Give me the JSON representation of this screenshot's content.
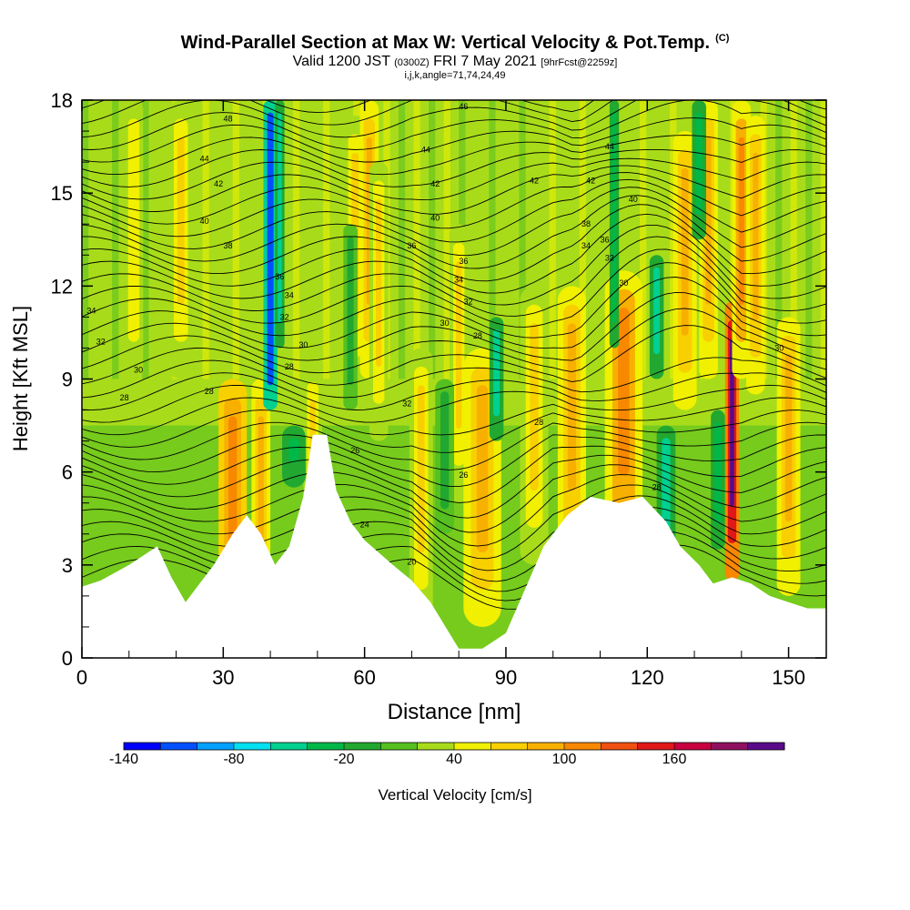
{
  "header": {
    "title_main": "Wind-Parallel Section at Max W: Vertical Velocity & Pot.Temp.",
    "title_mark": "(C)",
    "valid_prefix": "Valid 1200 JST",
    "valid_utc": "(0300Z)",
    "valid_date": "FRI 7 May 2021",
    "forecast": "[9hrFcst@2259z]",
    "params": "i,j,k,angle=71,74,24,49"
  },
  "chart_data": {
    "type": "heatmap",
    "xlabel": "Distance [nm]",
    "ylabel": "Height [Kft MSL]",
    "xlim": [
      0,
      158
    ],
    "ylim": [
      0,
      18
    ],
    "xticks": [
      0,
      30,
      60,
      90,
      120,
      150
    ],
    "yticks": [
      0,
      3,
      6,
      9,
      12,
      15,
      18
    ],
    "terrain": [
      {
        "x": 0,
        "y": 2.3
      },
      {
        "x": 4,
        "y": 2.5
      },
      {
        "x": 10,
        "y": 3.0
      },
      {
        "x": 16,
        "y": 3.6
      },
      {
        "x": 19,
        "y": 2.6
      },
      {
        "x": 22,
        "y": 1.8
      },
      {
        "x": 25,
        "y": 2.4
      },
      {
        "x": 28,
        "y": 3.0
      },
      {
        "x": 32,
        "y": 4.0
      },
      {
        "x": 35,
        "y": 4.6
      },
      {
        "x": 38,
        "y": 4.0
      },
      {
        "x": 41,
        "y": 3.0
      },
      {
        "x": 44,
        "y": 3.6
      },
      {
        "x": 47,
        "y": 5.2
      },
      {
        "x": 49,
        "y": 7.2
      },
      {
        "x": 52,
        "y": 7.2
      },
      {
        "x": 54,
        "y": 5.4
      },
      {
        "x": 57,
        "y": 4.4
      },
      {
        "x": 60,
        "y": 3.8
      },
      {
        "x": 63,
        "y": 3.4
      },
      {
        "x": 66,
        "y": 3.0
      },
      {
        "x": 70,
        "y": 2.5
      },
      {
        "x": 74,
        "y": 1.8
      },
      {
        "x": 78,
        "y": 0.8
      },
      {
        "x": 80,
        "y": 0.3
      },
      {
        "x": 85,
        "y": 0.3
      },
      {
        "x": 90,
        "y": 0.8
      },
      {
        "x": 94,
        "y": 2.2
      },
      {
        "x": 98,
        "y": 3.6
      },
      {
        "x": 103,
        "y": 4.6
      },
      {
        "x": 108,
        "y": 5.2
      },
      {
        "x": 114,
        "y": 5.0
      },
      {
        "x": 119,
        "y": 5.2
      },
      {
        "x": 124,
        "y": 4.4
      },
      {
        "x": 127,
        "y": 3.6
      },
      {
        "x": 131,
        "y": 3.0
      },
      {
        "x": 134,
        "y": 2.4
      },
      {
        "x": 138,
        "y": 2.6
      },
      {
        "x": 142,
        "y": 2.4
      },
      {
        "x": 146,
        "y": 2.0
      },
      {
        "x": 150,
        "y": 1.8
      },
      {
        "x": 154,
        "y": 1.6
      },
      {
        "x": 158,
        "y": 1.6
      }
    ],
    "updraft_cores": [
      {
        "x": 32,
        "ytop": 9.0,
        "w": 3.0,
        "value": 90
      },
      {
        "x": 38,
        "ytop": 9.0,
        "w": 2.0,
        "value": 70
      },
      {
        "x": 49,
        "ytop": 9.5,
        "w": 2.0,
        "value": 40
      },
      {
        "x": 58,
        "ytop": 17.5,
        "w": 2.5,
        "value": 40
      },
      {
        "x": 61,
        "ytop": 18.0,
        "w": 2.0,
        "value": 70
      },
      {
        "x": 63,
        "ytop": 16.0,
        "w": 2.0,
        "value": 40
      },
      {
        "x": 72,
        "ytop": 10.0,
        "w": 2.5,
        "value": 40
      },
      {
        "x": 80,
        "ytop": 14.0,
        "w": 2.0,
        "value": 40
      },
      {
        "x": 85,
        "ytop": 10.0,
        "w": 4.0,
        "value": 60
      },
      {
        "x": 96,
        "ytop": 12.0,
        "w": 3.0,
        "value": 40
      },
      {
        "x": 104,
        "ytop": 12.0,
        "w": 3.0,
        "value": 60
      },
      {
        "x": 115,
        "ytop": 12.5,
        "w": 4.0,
        "value": 80
      },
      {
        "x": 128,
        "ytop": 17.0,
        "w": 2.5,
        "value": 60
      },
      {
        "x": 133,
        "ytop": 18.0,
        "w": 2.0,
        "value": 70
      },
      {
        "x": 138,
        "ytop": 11.5,
        "w": 1.5,
        "value": 180
      },
      {
        "x": 140,
        "ytop": 18.0,
        "w": 2.0,
        "value": 80
      },
      {
        "x": 143,
        "ytop": 17.5,
        "w": 2.0,
        "value": 60
      },
      {
        "x": 150,
        "ytop": 11.0,
        "w": 2.5,
        "value": 60
      },
      {
        "x": 21,
        "ytop": 18.0,
        "w": 2.5,
        "value": 40
      },
      {
        "x": 11,
        "ytop": 18.0,
        "w": 2.0,
        "value": 30
      }
    ],
    "downdraft_cores": [
      {
        "x": 40,
        "ybot": 8.0,
        "ytop": 18.0,
        "w": 1.5,
        "value": -140
      },
      {
        "x": 42,
        "ybot": 10.0,
        "ytop": 18.0,
        "w": 1.0,
        "value": -80
      },
      {
        "x": 45,
        "ybot": 5.5,
        "ytop": 7.5,
        "w": 2.5,
        "value": -60
      },
      {
        "x": 57,
        "ybot": 8.0,
        "ytop": 14.0,
        "w": 1.5,
        "value": -40
      },
      {
        "x": 77,
        "ybot": 4.0,
        "ytop": 9.0,
        "w": 2.0,
        "value": -40
      },
      {
        "x": 88,
        "ybot": 7.0,
        "ytop": 11.0,
        "w": 1.5,
        "value": -80
      },
      {
        "x": 113,
        "ybot": 10.0,
        "ytop": 18.0,
        "w": 1.0,
        "value": -60
      },
      {
        "x": 122,
        "ybot": 9.0,
        "ytop": 13.0,
        "w": 1.5,
        "value": -80
      },
      {
        "x": 124,
        "ybot": 3.3,
        "ytop": 7.5,
        "w": 2.0,
        "value": -80
      },
      {
        "x": 131,
        "ybot": 13.5,
        "ytop": 18.0,
        "w": 1.5,
        "value": -60
      },
      {
        "x": 135,
        "ybot": 3.5,
        "ytop": 8.0,
        "w": 1.5,
        "value": -60
      }
    ],
    "theta_contours": {
      "units": "C",
      "labels": [
        {
          "x": 2,
          "y": 11.2,
          "text": "34"
        },
        {
          "x": 4,
          "y": 10.2,
          "text": "32"
        },
        {
          "x": 12,
          "y": 9.3,
          "text": "30"
        },
        {
          "x": 9,
          "y": 8.4,
          "text": "28"
        },
        {
          "x": 27,
          "y": 8.6,
          "text": "28"
        },
        {
          "x": 31,
          "y": 13.3,
          "text": "38"
        },
        {
          "x": 26,
          "y": 14.1,
          "text": "40"
        },
        {
          "x": 29,
          "y": 15.3,
          "text": "42"
        },
        {
          "x": 26,
          "y": 16.1,
          "text": "44"
        },
        {
          "x": 31,
          "y": 17.4,
          "text": "48"
        },
        {
          "x": 42,
          "y": 12.3,
          "text": "36"
        },
        {
          "x": 44,
          "y": 11.7,
          "text": "34"
        },
        {
          "x": 43,
          "y": 11.0,
          "text": "32"
        },
        {
          "x": 47,
          "y": 10.1,
          "text": "30"
        },
        {
          "x": 44,
          "y": 9.4,
          "text": "28"
        },
        {
          "x": 58,
          "y": 6.7,
          "text": "26"
        },
        {
          "x": 60,
          "y": 4.3,
          "text": "24"
        },
        {
          "x": 70,
          "y": 3.1,
          "text": "20"
        },
        {
          "x": 69,
          "y": 8.2,
          "text": "32"
        },
        {
          "x": 70,
          "y": 13.3,
          "text": "36"
        },
        {
          "x": 75,
          "y": 14.2,
          "text": "40"
        },
        {
          "x": 75,
          "y": 15.3,
          "text": "42"
        },
        {
          "x": 73,
          "y": 16.4,
          "text": "44"
        },
        {
          "x": 81,
          "y": 17.8,
          "text": "46"
        },
        {
          "x": 81,
          "y": 12.8,
          "text": "36"
        },
        {
          "x": 80,
          "y": 12.2,
          "text": "34"
        },
        {
          "x": 82,
          "y": 11.5,
          "text": "32"
        },
        {
          "x": 77,
          "y": 10.8,
          "text": "30"
        },
        {
          "x": 84,
          "y": 10.4,
          "text": "28"
        },
        {
          "x": 81,
          "y": 5.9,
          "text": "26"
        },
        {
          "x": 96,
          "y": 15.4,
          "text": "42"
        },
        {
          "x": 108,
          "y": 15.4,
          "text": "42"
        },
        {
          "x": 112,
          "y": 16.5,
          "text": "44"
        },
        {
          "x": 117,
          "y": 14.8,
          "text": "40"
        },
        {
          "x": 107,
          "y": 14.0,
          "text": "38"
        },
        {
          "x": 107,
          "y": 13.3,
          "text": "34"
        },
        {
          "x": 111,
          "y": 13.5,
          "text": "36"
        },
        {
          "x": 112,
          "y": 12.9,
          "text": "32"
        },
        {
          "x": 115,
          "y": 12.1,
          "text": "30"
        },
        {
          "x": 97,
          "y": 7.6,
          "text": "28"
        },
        {
          "x": 122,
          "y": 5.5,
          "text": "28"
        },
        {
          "x": 148,
          "y": 10.0,
          "text": "30"
        }
      ]
    },
    "colorbar": {
      "label": "Vertical Velocity [cm/s]",
      "tick_labels": [
        "-140",
        "-80",
        "-20",
        "40",
        "100",
        "160"
      ],
      "colors": [
        "#0000ff",
        "#0050ff",
        "#00a0ff",
        "#00e0f0",
        "#00d090",
        "#00b848",
        "#22a830",
        "#55c020",
        "#a8dc1a",
        "#f0f000",
        "#f8d000",
        "#f8b000",
        "#f88800",
        "#f05010",
        "#e01818",
        "#c80040",
        "#901060",
        "#5a0a8a"
      ]
    }
  }
}
